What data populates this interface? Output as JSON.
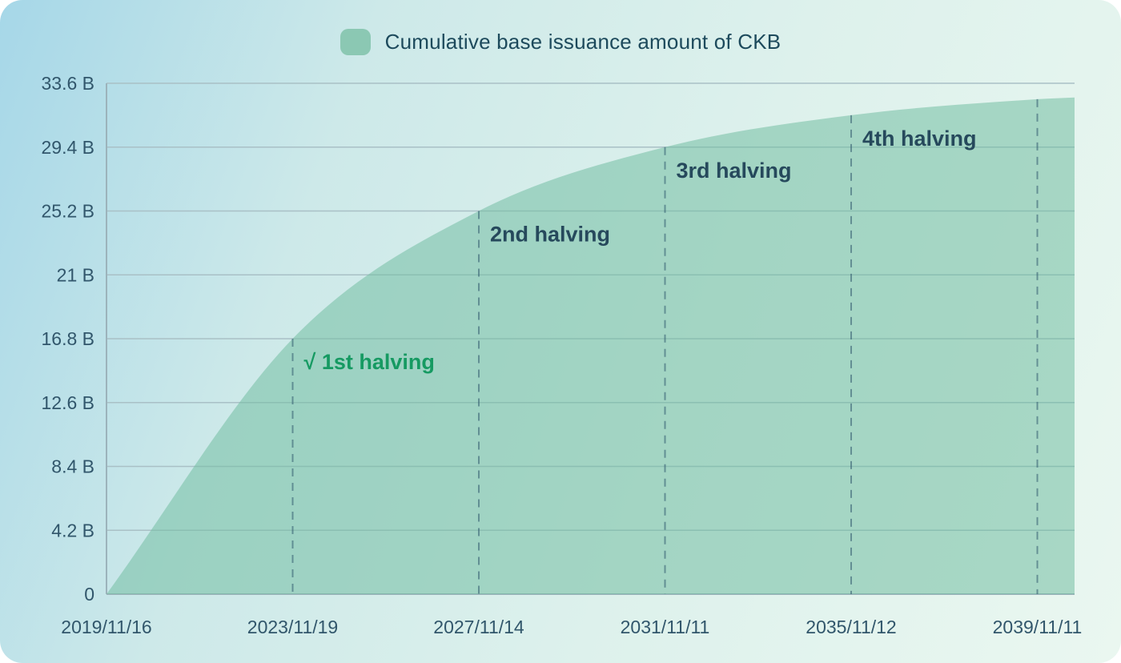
{
  "legend": {
    "label": "Cumulative base issuance amount of CKB"
  },
  "colors": {
    "legend_swatch": "#8bc8b3",
    "area_fill": "rgba(115,190,162,0.55)",
    "grid_line": "#a9c0c6",
    "axis_line": "#9cb3bb",
    "halving_dash": "#2e566b",
    "tick_text": "#31566b",
    "annotation_text": "#26495c",
    "annotation_done_text": "#169a62",
    "background_gradient_start": "#a6d7e8",
    "background_gradient_end": "#eaf7f0"
  },
  "chart_data": {
    "type": "area",
    "title": "Cumulative base issuance amount of CKB",
    "xlabel": "",
    "ylabel": "",
    "unit": "B",
    "grid": "horizontal",
    "legend_position": "top-center",
    "xlim_years": [
      0,
      20.8
    ],
    "ylim": [
      0,
      33.6
    ],
    "y_ticks": [
      {
        "value": 0,
        "label": "0"
      },
      {
        "value": 4.2,
        "label": "4.2 B"
      },
      {
        "value": 8.4,
        "label": "8.4 B"
      },
      {
        "value": 12.6,
        "label": "12.6 B"
      },
      {
        "value": 16.8,
        "label": "16.8 B"
      },
      {
        "value": 21,
        "label": "21 B"
      },
      {
        "value": 25.2,
        "label": "25.2 B"
      },
      {
        "value": 29.4,
        "label": "29.4 B"
      },
      {
        "value": 33.6,
        "label": "33.6 B"
      }
    ],
    "x_ticks": [
      {
        "years": 0,
        "label": "2019/11/16"
      },
      {
        "years": 4,
        "label": "2023/11/19"
      },
      {
        "years": 8,
        "label": "2027/11/14"
      },
      {
        "years": 12,
        "label": "2031/11/11"
      },
      {
        "years": 16,
        "label": "2035/11/12"
      },
      {
        "years": 20,
        "label": "2039/11/11"
      }
    ],
    "series": [
      {
        "name": "Cumulative base issuance amount of CKB",
        "points": [
          {
            "years": 0,
            "date": "2019/11/16",
            "value": 0
          },
          {
            "years": 4,
            "date": "2023/11/19",
            "value": 16.8
          },
          {
            "years": 8,
            "date": "2027/11/14",
            "value": 25.2
          },
          {
            "years": 12,
            "date": "2031/11/11",
            "value": 29.4
          },
          {
            "years": 16,
            "date": "2035/11/12",
            "value": 31.5
          },
          {
            "years": 20,
            "date": "2039/11/11",
            "value": 32.55
          },
          {
            "years": 20.8,
            "value": 32.66
          }
        ]
      }
    ],
    "halving_lines_years": [
      4,
      8,
      12,
      16,
      20
    ],
    "annotations": [
      {
        "label": "√ 1st halving",
        "years": 4,
        "value": 16.8,
        "status": "done"
      },
      {
        "label": "2nd halving",
        "years": 8,
        "value": 25.2,
        "status": "upcoming"
      },
      {
        "label": "3rd halving",
        "years": 12,
        "value": 29.4,
        "status": "upcoming"
      },
      {
        "label": "4th halving",
        "years": 16,
        "value": 31.5,
        "status": "upcoming"
      }
    ]
  }
}
